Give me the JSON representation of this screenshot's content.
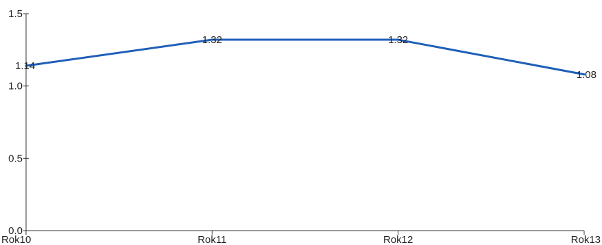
{
  "chart_data": {
    "type": "line",
    "categories": [
      "Rok10",
      "Rok11",
      "Rok12",
      "Rok13"
    ],
    "series": [
      {
        "values": [
          1.14,
          1.32,
          1.32,
          1.08
        ],
        "labels": [
          "1.14",
          "1.32",
          "1.32",
          "1.08"
        ],
        "color": "#1f5fb8"
      }
    ],
    "yticks": [
      "0.0",
      "0.5",
      "1.0",
      "1.5"
    ],
    "ylim": [
      0,
      1.5
    ],
    "grid": false,
    "legend": "none"
  }
}
